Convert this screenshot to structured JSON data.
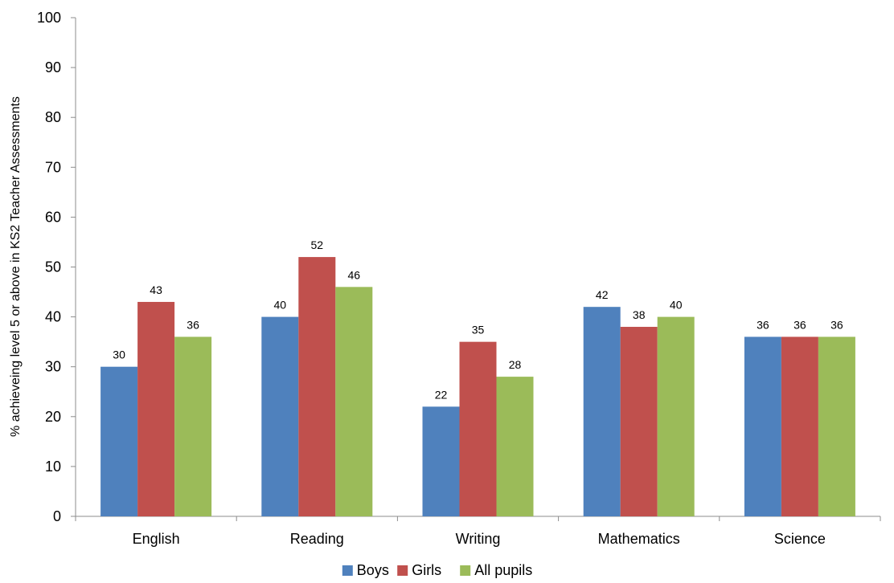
{
  "chart_data": {
    "type": "bar",
    "title": "",
    "xlabel": "",
    "ylabel": "% achieveing level 5 or above in KS2  Teacher Assessments",
    "ylim": [
      0,
      100
    ],
    "yticks": [
      0,
      10,
      20,
      30,
      40,
      50,
      60,
      70,
      80,
      90,
      100
    ],
    "grid": false,
    "legend_position": "bottom",
    "categories": [
      "English",
      "Reading",
      "Writing",
      "Mathematics",
      "Science"
    ],
    "series": [
      {
        "name": "Boys",
        "color": "#4F81BD",
        "values": [
          30,
          40,
          22,
          42,
          36
        ]
      },
      {
        "name": "Girls",
        "color": "#C0504D",
        "values": [
          43,
          52,
          35,
          38,
          36
        ]
      },
      {
        "name": "All pupils",
        "color": "#9BBB59",
        "values": [
          36,
          46,
          28,
          40,
          36
        ]
      }
    ],
    "data_labels": true
  }
}
